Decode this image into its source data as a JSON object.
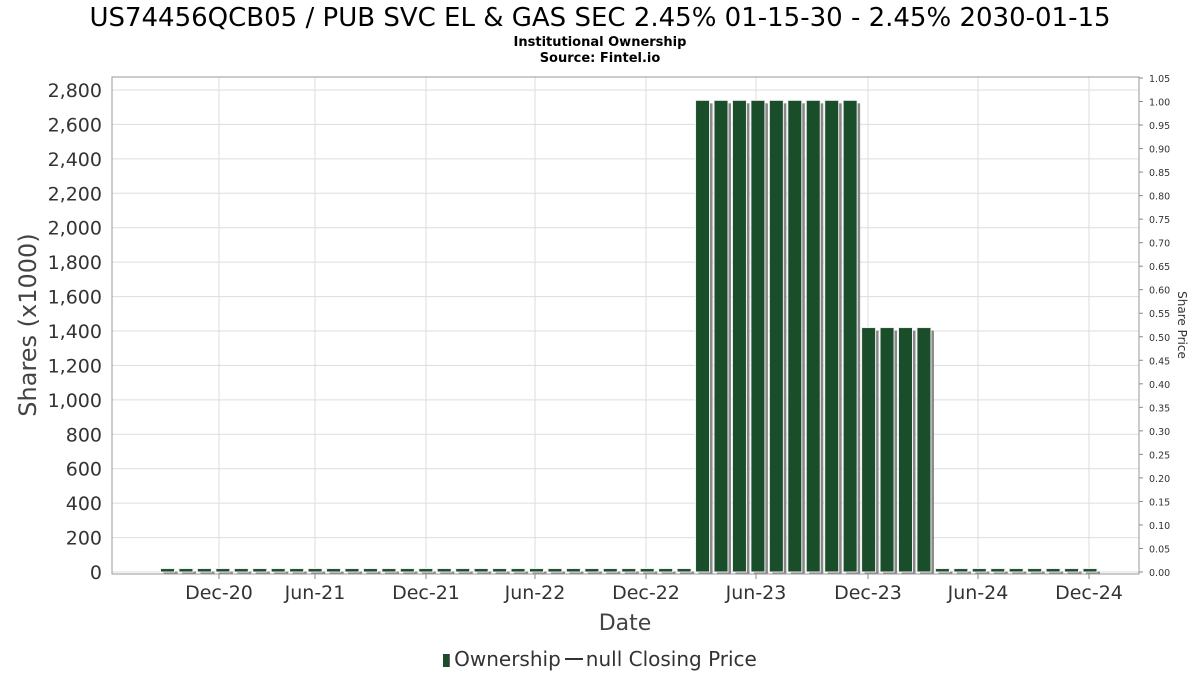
{
  "chart_data": {
    "type": "bar",
    "title": "US74456QCB05 / PUB SVC EL & GAS SEC 2.45% 01-15-30 - 2.45% 2030-01-15",
    "subtitle": "Institutional Ownership",
    "source": "Source: Fintel.io",
    "xlabel": "Date",
    "ylabel": "Shares (x1000)",
    "y2label": "Share Price",
    "ylim": [
      0,
      2850
    ],
    "y2lim": [
      0,
      1.05
    ],
    "yticks": [
      0,
      200,
      400,
      600,
      800,
      1000,
      1200,
      1400,
      1600,
      1800,
      2000,
      2200,
      2400,
      2600,
      2800
    ],
    "yticklabels": [
      "0",
      "200",
      "400",
      "600",
      "800",
      "1,000",
      "1,200",
      "1,400",
      "1,600",
      "1,800",
      "2,000",
      "2,200",
      "2,400",
      "2,600",
      "2,800"
    ],
    "y2ticklabels": [
      "0.00",
      "0.05",
      "0.10",
      "0.15",
      "0.20",
      "0.25",
      "0.30",
      "0.35",
      "0.40",
      "0.45",
      "0.50",
      "0.55",
      "0.60",
      "0.65",
      "0.70",
      "0.75",
      "0.80",
      "0.85",
      "0.90",
      "0.95",
      "1.00",
      "1.05"
    ],
    "xticklabels": [
      "Dec-20",
      "Jun-21",
      "Dec-21",
      "Jun-22",
      "Dec-22",
      "Jun-23",
      "Dec-23",
      "Jun-24",
      "Dec-24"
    ],
    "grid": true,
    "legend_position": "bottom",
    "colors": {
      "bar": "#1a4d2a",
      "bar_shadow": "#888888",
      "grid": "#dddddd",
      "axis": "#888888"
    },
    "series": [
      {
        "name": "Ownership",
        "values": [
          20,
          20,
          20,
          20,
          20,
          20,
          20,
          20,
          20,
          20,
          20,
          20,
          20,
          20,
          20,
          20,
          20,
          20,
          20,
          20,
          20,
          20,
          20,
          20,
          20,
          20,
          20,
          20,
          20,
          2740,
          2740,
          2740,
          2740,
          2740,
          2740,
          2740,
          2740,
          2740,
          1420,
          1420,
          1420,
          1420,
          20,
          20,
          20,
          20,
          20,
          20,
          20,
          20,
          20
        ]
      }
    ]
  },
  "legend": {
    "ownership_label": "Ownership",
    "price_label": "null Closing Price"
  }
}
